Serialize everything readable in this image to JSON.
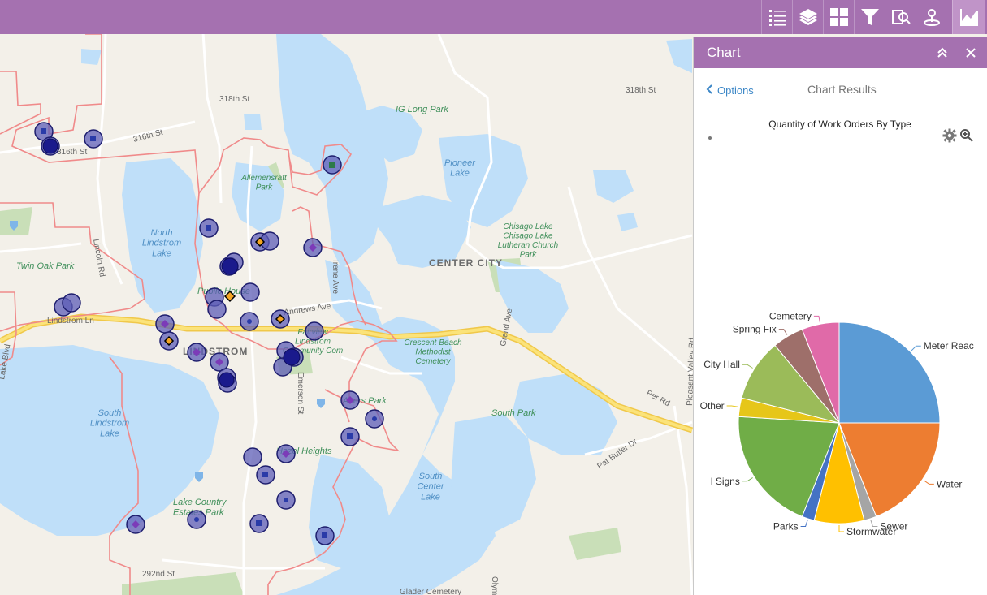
{
  "toolbar": {
    "items": [
      {
        "name": "list-icon",
        "active": false
      },
      {
        "name": "layers-icon",
        "active": false
      },
      {
        "name": "basemap-gallery-icon",
        "active": false
      },
      {
        "name": "filter-icon",
        "active": false
      },
      {
        "name": "query-icon",
        "active": false
      },
      {
        "name": "locate-icon",
        "active": false
      },
      {
        "name": "chart-icon",
        "active": true
      }
    ],
    "color": "#a571b0"
  },
  "panel": {
    "title": "Chart",
    "collapse_icon": "double-chevron-up-icon",
    "close_icon": "close-icon",
    "options_label": "Options",
    "results_label": "Chart Results",
    "settings_icon": "gear-icon",
    "zoom_icon": "zoom-in-icon"
  },
  "map": {
    "labels": {
      "st318w": "318th St",
      "st318e": "318th St",
      "st316": "316th St",
      "st316b": "316th St",
      "ig_long": "IG Long Park",
      "pioneer": "Pioneer\nLake",
      "allemensratt": "Allemensratt\nPark",
      "north_lindstrom": "North\nLindstrom\nLake",
      "chisago": "Chisago Lake\nChisago Lake\nLutheran Church\nPark",
      "center_city": "CENTER CITY",
      "twin_oak": "Twin Oak Park",
      "lincoln": "Lincoln Rd",
      "irene": "Irene Ave",
      "andrews": "Andrews Ave",
      "public_house": "Public House",
      "lindstrom_ln": "Lindstrom Ln",
      "lindstrom": "LINDSTROM",
      "fairview": "Fairview\nLindstrom\nCommunity Com",
      "crescent": "Crescent Beach\nMethodist\nCemetery",
      "grand": "Grand Ave",
      "south_park": "South Park",
      "per_rd": "Per Rd",
      "pleasant_valley": "Pleasant Valley Rd",
      "south_lindstrom": "South\nLindstrom\nLake",
      "akers": "Akers Park",
      "hazel": "Hazel Heights",
      "pat_butler": "Pat Butler Dr",
      "south_center": "South\nCenter\nLake",
      "lake_country": "Lake Country\nEstates Park",
      "st292": "292nd St",
      "glader": "Glader Cemetery",
      "olympia": "Olympia",
      "emerson": "Emerson St",
      "lake_blvd": "Lake Blvd"
    }
  },
  "chart_data": {
    "type": "pie",
    "title": "Quantity of Work Orders By Type",
    "slices": [
      {
        "label": "Meter Reac",
        "value": 25.0,
        "color": "#5b9bd5"
      },
      {
        "label": "Water",
        "value": 19.0,
        "color": "#ed7d31"
      },
      {
        "label": "Sewer",
        "value": 2.0,
        "color": "#a5a5a5"
      },
      {
        "label": "Stormwater",
        "value": 8.0,
        "color": "#ffc000"
      },
      {
        "label": "Parks",
        "value": 2.0,
        "color": "#4472c4"
      },
      {
        "label": "l Signs",
        "value": 20.0,
        "color": "#70ad47"
      },
      {
        "label": "Other",
        "value": 3.0,
        "color": "#e6c619"
      },
      {
        "label": "City Hall",
        "value": 10.0,
        "color": "#9bbb59"
      },
      {
        "label": "Spring Fix",
        "value": 5.0,
        "color": "#9e6f6a"
      },
      {
        "label": "Cemetery",
        "value": 6.0,
        "color": "#e06aa8"
      }
    ]
  }
}
